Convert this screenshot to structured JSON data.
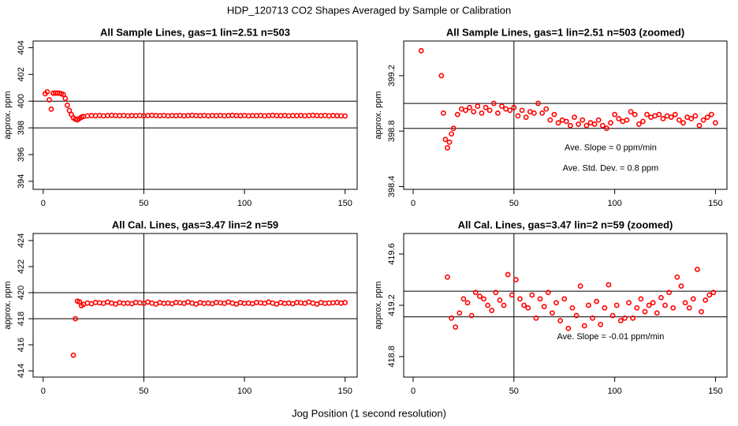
{
  "title": "HDP_120713  CO2 Shapes Averaged by Sample or Calibration",
  "x_label": "Jog Position (1 second resolution)",
  "chart_data": [
    {
      "type": "scatter",
      "title": "All Sample Lines, gas=1 lin=2.51 n=503",
      "y_label": "approx. ppm",
      "color": "#ff0000",
      "x": [
        1,
        2,
        3,
        4,
        5,
        6,
        7,
        8,
        9,
        10,
        11,
        12,
        13,
        14,
        15,
        16,
        17,
        18,
        19,
        20,
        22,
        24,
        26,
        28,
        30,
        32,
        34,
        36,
        38,
        40,
        42,
        44,
        46,
        48,
        50,
        52,
        54,
        56,
        58,
        60,
        62,
        64,
        66,
        68,
        70,
        72,
        74,
        76,
        78,
        80,
        82,
        84,
        86,
        88,
        90,
        92,
        94,
        96,
        98,
        100,
        102,
        104,
        106,
        108,
        110,
        112,
        114,
        116,
        118,
        120,
        122,
        124,
        126,
        128,
        130,
        132,
        134,
        136,
        138,
        140,
        142,
        144,
        146,
        148,
        150
      ],
      "values": [
        400.55,
        400.7,
        400.1,
        399.4,
        400.6,
        400.6,
        400.6,
        400.6,
        400.55,
        400.5,
        400.2,
        399.7,
        399.3,
        399.0,
        398.75,
        398.65,
        398.6,
        398.7,
        398.8,
        398.85,
        398.9,
        398.92,
        398.91,
        398.93,
        398.9,
        398.92,
        398.94,
        398.92,
        398.91,
        398.93,
        398.9,
        398.92,
        398.91,
        398.93,
        398.9,
        398.92,
        398.94,
        398.92,
        398.91,
        398.93,
        398.9,
        398.92,
        398.91,
        398.93,
        398.9,
        398.92,
        398.94,
        398.92,
        398.91,
        398.93,
        398.9,
        398.92,
        398.91,
        398.93,
        398.9,
        398.92,
        398.94,
        398.92,
        398.91,
        398.93,
        398.9,
        398.92,
        398.91,
        398.93,
        398.9,
        398.92,
        398.94,
        398.92,
        398.91,
        398.93,
        398.9,
        398.92,
        398.91,
        398.93,
        398.9,
        398.92,
        398.94,
        398.92,
        398.91,
        398.93,
        398.9,
        398.92,
        398.91,
        398.9,
        398.89
      ],
      "xlim": [
        -5,
        156
      ],
      "ylim": [
        393.4,
        404.5
      ],
      "xticks": [
        0,
        50,
        100,
        150
      ],
      "yticks": [
        394,
        396,
        398,
        400,
        402,
        404
      ],
      "hlines": [
        398,
        400
      ],
      "vlines": [
        50
      ],
      "annotations": []
    },
    {
      "type": "scatter",
      "title": "All Sample Lines, gas=1 lin=2.51 n=503 (zoomed)",
      "y_label": "approx. ppm",
      "color": "#ff0000",
      "x": [
        4,
        14,
        15,
        16,
        17,
        18,
        19,
        20,
        22,
        24,
        26,
        28,
        30,
        32,
        34,
        36,
        38,
        40,
        42,
        44,
        46,
        48,
        50,
        52,
        54,
        56,
        58,
        60,
        62,
        64,
        66,
        68,
        70,
        72,
        74,
        76,
        78,
        80,
        82,
        84,
        86,
        88,
        90,
        92,
        94,
        96,
        98,
        100,
        102,
        104,
        106,
        108,
        110,
        112,
        114,
        116,
        118,
        120,
        122,
        124,
        126,
        128,
        130,
        132,
        134,
        136,
        138,
        140,
        142,
        144,
        146,
        148,
        150
      ],
      "values": [
        399.38,
        399.2,
        398.93,
        398.74,
        398.68,
        398.72,
        398.78,
        398.82,
        398.92,
        398.96,
        398.95,
        398.97,
        398.94,
        398.98,
        398.93,
        398.97,
        398.95,
        399.0,
        398.93,
        398.98,
        398.96,
        398.95,
        398.97,
        398.91,
        398.95,
        398.9,
        398.94,
        398.93,
        399.0,
        398.93,
        398.96,
        398.88,
        398.92,
        398.86,
        398.88,
        398.87,
        398.84,
        398.9,
        398.85,
        398.88,
        398.84,
        398.86,
        398.85,
        398.88,
        398.84,
        398.82,
        398.86,
        398.92,
        398.89,
        398.87,
        398.88,
        398.94,
        398.92,
        398.85,
        398.87,
        398.92,
        398.9,
        398.91,
        398.92,
        398.89,
        398.91,
        398.9,
        398.92,
        398.88,
        398.86,
        398.9,
        398.89,
        398.91,
        398.84,
        398.88,
        398.9,
        398.92,
        398.86
      ],
      "xlim": [
        -4.7,
        155.7
      ],
      "ylim": [
        398.38,
        399.45
      ],
      "xticks": [
        0,
        50,
        100,
        150
      ],
      "yticks": [
        398.4,
        398.8,
        399.2
      ],
      "hlines": [
        398.82,
        399.0
      ],
      "vlines": [
        50
      ],
      "annotations": [
        "Ave. Slope =  0  ppm/min",
        "Ave. Std. Dev. =  0.8  ppm"
      ]
    },
    {
      "type": "scatter",
      "title": "All Cal. Lines, gas=3.47 lin=2 n=59",
      "y_label": "approx. ppm",
      "color": "#ff0000",
      "x": [
        15,
        16,
        17,
        18,
        19,
        20,
        22,
        24,
        26,
        28,
        30,
        32,
        34,
        36,
        38,
        40,
        42,
        44,
        46,
        48,
        50,
        52,
        54,
        56,
        58,
        60,
        62,
        64,
        66,
        68,
        70,
        72,
        74,
        76,
        78,
        80,
        82,
        84,
        86,
        88,
        90,
        92,
        94,
        96,
        98,
        100,
        102,
        104,
        106,
        108,
        110,
        112,
        114,
        116,
        118,
        120,
        122,
        124,
        126,
        128,
        130,
        132,
        134,
        136,
        138,
        140,
        142,
        144,
        146,
        148,
        150
      ],
      "values": [
        415.2,
        418.0,
        419.35,
        419.3,
        419.0,
        419.1,
        419.2,
        419.15,
        419.25,
        419.22,
        419.18,
        419.28,
        419.2,
        419.12,
        419.24,
        419.18,
        419.2,
        419.15,
        419.25,
        419.22,
        419.18,
        419.28,
        419.2,
        419.12,
        419.24,
        419.18,
        419.2,
        419.15,
        419.25,
        419.22,
        419.18,
        419.28,
        419.2,
        419.12,
        419.24,
        419.18,
        419.2,
        419.15,
        419.25,
        419.22,
        419.18,
        419.28,
        419.2,
        419.12,
        419.24,
        419.18,
        419.2,
        419.15,
        419.25,
        419.22,
        419.18,
        419.28,
        419.2,
        419.12,
        419.24,
        419.18,
        419.2,
        419.15,
        419.25,
        419.22,
        419.18,
        419.28,
        419.2,
        419.12,
        419.24,
        419.18,
        419.2,
        419.22,
        419.25,
        419.2,
        419.24
      ],
      "xlim": [
        -5,
        156
      ],
      "ylim": [
        413.52,
        424.54
      ],
      "xticks": [
        0,
        50,
        100,
        150
      ],
      "yticks": [
        414,
        416,
        418,
        420,
        422,
        424
      ],
      "hlines": [
        418,
        420
      ],
      "vlines": [
        50
      ],
      "annotations": []
    },
    {
      "type": "scatter",
      "title": "All Cal. Lines, gas=3.47 lin=2 n=59 (zoomed)",
      "y_label": "approx. ppm",
      "color": "#ff0000",
      "x": [
        17,
        19,
        21,
        23,
        25,
        27,
        29,
        31,
        33,
        35,
        37,
        39,
        41,
        43,
        45,
        47,
        49,
        51,
        53,
        55,
        57,
        59,
        61,
        63,
        65,
        67,
        69,
        71,
        73,
        75,
        77,
        79,
        81,
        83,
        85,
        87,
        89,
        91,
        93,
        95,
        97,
        99,
        101,
        103,
        105,
        107,
        109,
        111,
        113,
        115,
        117,
        119,
        121,
        123,
        125,
        127,
        129,
        131,
        133,
        135,
        137,
        139,
        141,
        143,
        145,
        147,
        149
      ],
      "values": [
        419.42,
        419.1,
        419.03,
        419.14,
        419.25,
        419.22,
        419.12,
        419.3,
        419.27,
        419.25,
        419.2,
        419.16,
        419.3,
        419.24,
        419.2,
        419.44,
        419.28,
        419.4,
        419.25,
        419.2,
        419.18,
        419.28,
        419.1,
        419.25,
        419.19,
        419.3,
        419.14,
        419.22,
        419.08,
        419.25,
        419.02,
        419.18,
        419.12,
        419.35,
        419.04,
        419.2,
        419.1,
        419.23,
        419.05,
        419.18,
        419.36,
        419.12,
        419.2,
        419.08,
        419.1,
        419.22,
        419.1,
        419.18,
        419.25,
        419.15,
        419.2,
        419.22,
        419.14,
        419.26,
        419.2,
        419.3,
        419.18,
        419.42,
        419.35,
        419.22,
        419.18,
        419.25,
        419.48,
        419.15,
        419.24,
        419.28,
        419.3
      ],
      "xlim": [
        -4.7,
        155.7
      ],
      "ylim": [
        418.64,
        419.76
      ],
      "xticks": [
        0,
        50,
        100,
        150
      ],
      "yticks": [
        418.8,
        419.2,
        419.6
      ],
      "hlines": [
        419.11,
        419.31
      ],
      "vlines": [
        50
      ],
      "annotations": [
        "Ave. Slope =  -0.01  ppm/min"
      ]
    }
  ]
}
